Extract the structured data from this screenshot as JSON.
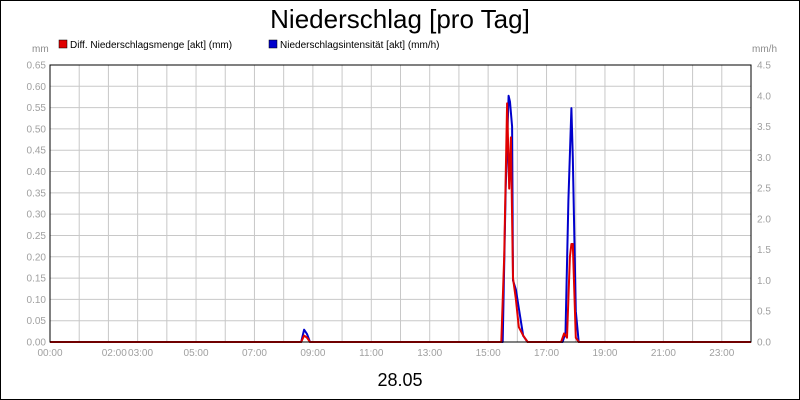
{
  "chart_data": {
    "type": "line",
    "title": "Niederschlag [pro Tag]",
    "date_label": "28.05",
    "y_left": {
      "unit": "mm",
      "min": 0,
      "max": 0.65,
      "step": 0.05,
      "ticks": [
        "0.00",
        "0.05",
        "0.10",
        "0.15",
        "0.20",
        "0.25",
        "0.30",
        "0.35",
        "0.40",
        "0.45",
        "0.50",
        "0.55",
        "0.60",
        "0.65"
      ]
    },
    "y_right": {
      "unit": "mm/h",
      "min": 0,
      "max": 4.5,
      "step": 0.5,
      "ticks": [
        "0.0",
        "0.5",
        "1.0",
        "1.5",
        "2.0",
        "2.5",
        "3.0",
        "3.5",
        "4.0",
        "4.5"
      ]
    },
    "x_axis": {
      "min": 0,
      "max": 24,
      "ticks": [
        {
          "h": 0,
          "label": "00:00"
        },
        {
          "h": 2.2,
          "label": "02:00"
        },
        {
          "h": 3.1,
          "label": "03:00"
        },
        {
          "h": 5,
          "label": "05:00"
        },
        {
          "h": 7,
          "label": "07:00"
        },
        {
          "h": 9,
          "label": "09:00"
        },
        {
          "h": 11,
          "label": "11:00"
        },
        {
          "h": 13,
          "label": "13:00"
        },
        {
          "h": 15,
          "label": "15:00"
        },
        {
          "h": 17,
          "label": "17:00"
        },
        {
          "h": 19,
          "label": "19:00"
        },
        {
          "h": 21,
          "label": "21:00"
        },
        {
          "h": 23,
          "label": "23:00"
        }
      ]
    },
    "grid": true,
    "legend_placement": "top-left",
    "series": [
      {
        "name": "Diff. Niederschlagsmenge [akt] (mm)",
        "color": "#e00000",
        "axis": "left",
        "points": [
          [
            0,
            0
          ],
          [
            8.6,
            0
          ],
          [
            8.7,
            0.015
          ],
          [
            8.8,
            0.01
          ],
          [
            8.9,
            0
          ],
          [
            15.45,
            0
          ],
          [
            15.55,
            0.2
          ],
          [
            15.65,
            0.56
          ],
          [
            15.72,
            0.36
          ],
          [
            15.78,
            0.48
          ],
          [
            15.85,
            0.15
          ],
          [
            15.95,
            0.1
          ],
          [
            16.05,
            0.035
          ],
          [
            16.2,
            0.015
          ],
          [
            16.35,
            0
          ],
          [
            17.5,
            0
          ],
          [
            17.6,
            0.02
          ],
          [
            17.7,
            0.01
          ],
          [
            17.8,
            0.2
          ],
          [
            17.85,
            0.23
          ],
          [
            17.9,
            0.23
          ],
          [
            18.0,
            0.01
          ],
          [
            18.1,
            0
          ],
          [
            24,
            0
          ]
        ]
      },
      {
        "name": "Niederschlagsintensität [akt] (mm/h)",
        "color": "#0000cc",
        "axis": "right",
        "points": [
          [
            0,
            0
          ],
          [
            8.6,
            0
          ],
          [
            8.7,
            0.2
          ],
          [
            8.8,
            0.13
          ],
          [
            8.9,
            0
          ],
          [
            15.5,
            0
          ],
          [
            15.6,
            2.5
          ],
          [
            15.7,
            4.0
          ],
          [
            15.75,
            3.9
          ],
          [
            15.82,
            3.5
          ],
          [
            15.85,
            1.0
          ],
          [
            15.95,
            0.85
          ],
          [
            16.05,
            0.55
          ],
          [
            16.2,
            0.1
          ],
          [
            16.35,
            0
          ],
          [
            17.55,
            0
          ],
          [
            17.65,
            0.15
          ],
          [
            17.75,
            2.3
          ],
          [
            17.85,
            3.8
          ],
          [
            17.9,
            3.0
          ],
          [
            18.0,
            0.5
          ],
          [
            18.1,
            0
          ],
          [
            24,
            0
          ]
        ]
      }
    ]
  }
}
